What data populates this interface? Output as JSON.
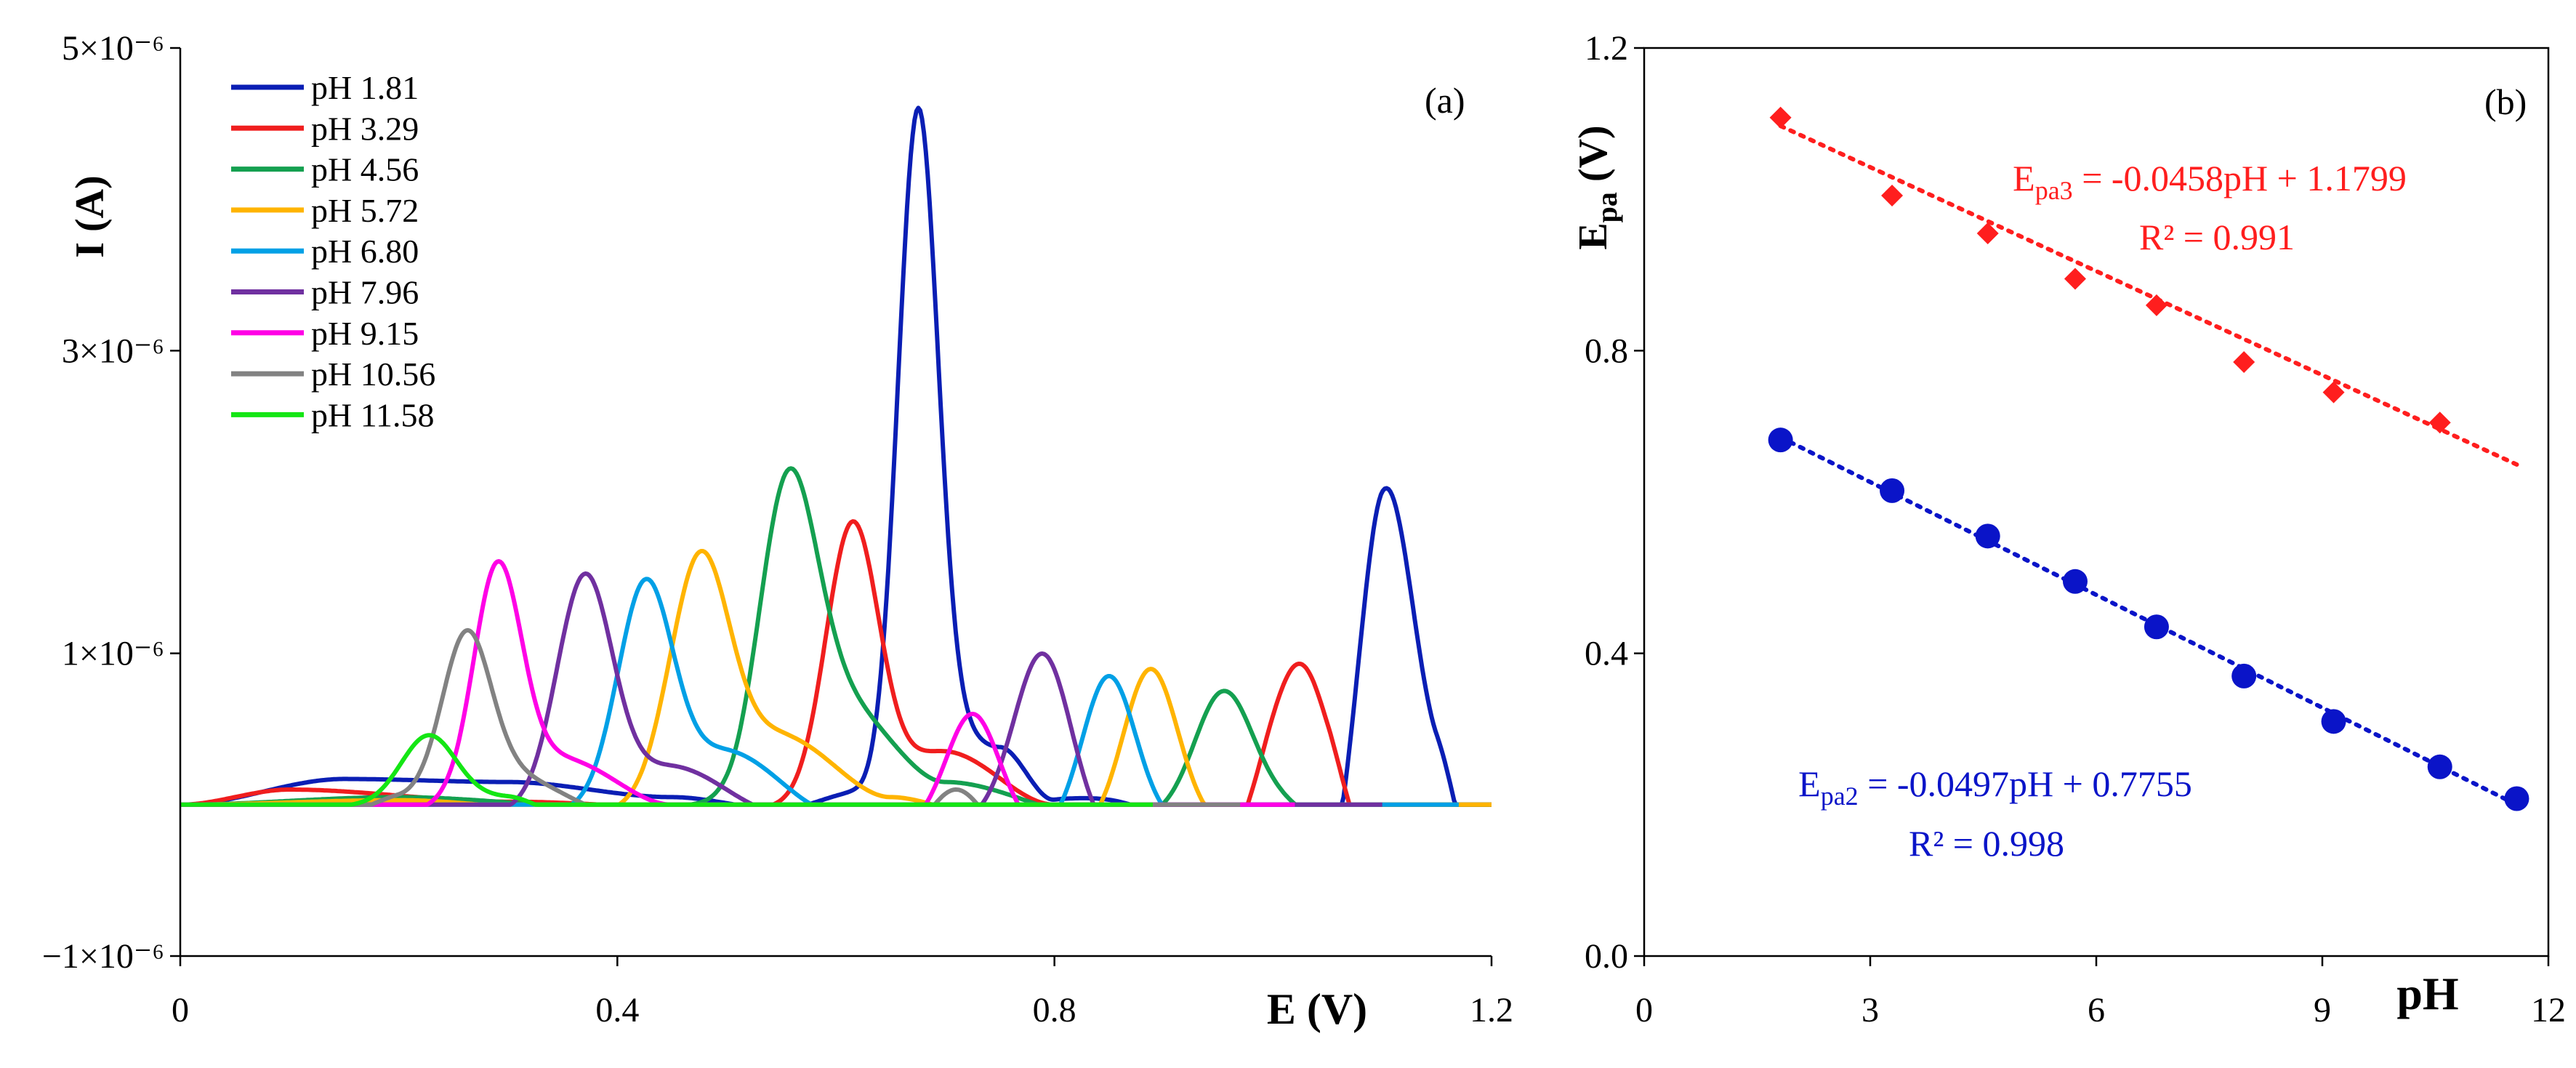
{
  "chart_data": [
    {
      "panel_label": "(a)",
      "type": "line",
      "xlabel": "E (V)",
      "ylabel": "I (A)",
      "xlim": [
        0,
        1.2
      ],
      "ylim": [
        -1e-06,
        5e-06
      ],
      "x_ticks": [
        0,
        0.4,
        0.8,
        1.2
      ],
      "x_tick_labels": [
        "0",
        "0.4",
        "0.8",
        "1.2"
      ],
      "y_ticks": [
        -1e-06,
        1e-06,
        3e-06,
        5e-06
      ],
      "y_tick_labels": [
        "−1×10⁻⁶",
        "1×10⁻⁶",
        "3×10⁻⁶",
        "5×10⁻⁶"
      ],
      "legend_position": "top-left",
      "series": [
        {
          "name": "pH 1.81",
          "color": "#0A1EB4",
          "baseline": [
            [
              0,
              0
            ],
            [
              0.15,
              0.17
            ],
            [
              0.3,
              0.15
            ],
            [
              0.45,
              0.05
            ],
            [
              0.55,
              -0.03
            ],
            [
              0.62,
              0.08
            ],
            [
              0.7,
              0.5
            ],
            [
              0.75,
              0.38
            ],
            [
              0.8,
              0.02
            ],
            [
              0.88,
              -0.1
            ],
            [
              0.95,
              -0.25
            ],
            [
              1.0,
              -0.45
            ],
            [
              1.05,
              -0.55
            ],
            [
              1.1,
              0.6
            ],
            [
              1.15,
              0.2
            ],
            [
              1.2,
              -0.8
            ]
          ],
          "peaks": [
            [
              0.675,
              4.2,
              0.018
            ],
            [
              1.105,
              1.5,
              0.024
            ],
            [
              0.86,
              0.1,
              0.03
            ]
          ]
        },
        {
          "name": "pH 3.29",
          "color": "#F01E1E",
          "baseline": [
            [
              0,
              0
            ],
            [
              0.1,
              0.1
            ],
            [
              0.3,
              0.02
            ],
            [
              0.5,
              -0.03
            ],
            [
              0.6,
              0.0
            ],
            [
              0.7,
              0.35
            ],
            [
              0.8,
              0.0
            ],
            [
              0.88,
              -0.2
            ],
            [
              0.95,
              -0.35
            ],
            [
              1.0,
              0.05
            ],
            [
              1.05,
              -0.25
            ],
            [
              1.1,
              -0.45
            ],
            [
              1.2,
              -0.8
            ]
          ],
          "peaks": [
            [
              0.615,
              1.85,
              0.024
            ],
            [
              1.03,
              1.05,
              0.026
            ]
          ]
        },
        {
          "name": "pH 4.56",
          "color": "#14A050",
          "baseline": [
            [
              0,
              0
            ],
            [
              0.2,
              0.05
            ],
            [
              0.4,
              -0.02
            ],
            [
              0.5,
              0.0
            ],
            [
              0.6,
              0.7
            ],
            [
              0.7,
              0.15
            ],
            [
              0.85,
              -0.1
            ],
            [
              0.95,
              -0.05
            ],
            [
              1.0,
              0.0
            ],
            [
              1.1,
              -0.3
            ],
            [
              1.2,
              -0.5
            ]
          ],
          "peaks": [
            [
              0.555,
              1.8,
              0.026
            ],
            [
              0.955,
              0.8,
              0.026
            ]
          ]
        },
        {
          "name": "pH 5.72",
          "color": "#FFB400",
          "baseline": [
            [
              0,
              0
            ],
            [
              0.2,
              0.03
            ],
            [
              0.38,
              -0.05
            ],
            [
              0.45,
              0.0
            ],
            [
              0.55,
              0.45
            ],
            [
              0.65,
              0.05
            ],
            [
              0.75,
              -0.1
            ],
            [
              0.82,
              -0.2
            ],
            [
              0.9,
              -0.15
            ],
            [
              1.0,
              -0.15
            ],
            [
              1.1,
              -0.35
            ],
            [
              1.2,
              -0.6
            ]
          ],
          "peaks": [
            [
              0.475,
              1.6,
              0.027
            ],
            [
              0.888,
              1.05,
              0.025
            ]
          ]
        },
        {
          "name": "pH 6.80",
          "color": "#00A0E6",
          "baseline": [
            [
              0,
              0
            ],
            [
              0.2,
              -0.02
            ],
            [
              0.33,
              -0.05
            ],
            [
              0.4,
              -0.02
            ],
            [
              0.5,
              0.35
            ],
            [
              0.6,
              -0.05
            ],
            [
              0.7,
              -0.1
            ],
            [
              0.78,
              -0.2
            ],
            [
              0.85,
              -0.1
            ],
            [
              0.95,
              -0.15
            ],
            [
              1.05,
              -0.4
            ],
            [
              1.12,
              -0.6
            ],
            [
              1.15,
              -0.8
            ],
            [
              1.17,
              -1.0
            ]
          ],
          "peaks": [
            [
              0.425,
              1.45,
              0.025
            ],
            [
              0.85,
              0.95,
              0.024
            ]
          ]
        },
        {
          "name": "pH 7.96",
          "color": "#7030A0",
          "baseline": [
            [
              0,
              0
            ],
            [
              0.15,
              -0.03
            ],
            [
              0.28,
              -0.05
            ],
            [
              0.35,
              0.0
            ],
            [
              0.45,
              0.25
            ],
            [
              0.55,
              -0.05
            ],
            [
              0.65,
              -0.2
            ],
            [
              0.75,
              -0.1
            ],
            [
              0.85,
              -0.25
            ],
            [
              0.95,
              -0.35
            ],
            [
              1.0,
              -0.45
            ],
            [
              1.07,
              -0.7
            ],
            [
              1.1,
              -1.0
            ]
          ],
          "peaks": [
            [
              0.37,
              1.5,
              0.025
            ],
            [
              0.79,
              1.15,
              0.026
            ]
          ]
        },
        {
          "name": "pH 9.15",
          "color": "#FF00E6",
          "baseline": [
            [
              0,
              0
            ],
            [
              0.1,
              -0.02
            ],
            [
              0.18,
              -0.08
            ],
            [
              0.25,
              0.0
            ],
            [
              0.35,
              0.3
            ],
            [
              0.45,
              0.0
            ],
            [
              0.55,
              -0.1
            ],
            [
              0.65,
              -0.15
            ],
            [
              0.75,
              -0.15
            ],
            [
              0.85,
              -0.3
            ],
            [
              0.9,
              -0.4
            ],
            [
              0.96,
              -0.6
            ],
            [
              1.0,
              -0.8
            ],
            [
              1.02,
              -1.0
            ]
          ],
          "peaks": [
            [
              0.29,
              1.5,
              0.022
            ],
            [
              0.725,
              0.75,
              0.024
            ]
          ]
        },
        {
          "name": "pH 10.56",
          "color": "#828282",
          "baseline": [
            [
              0,
              0
            ],
            [
              0.1,
              -0.03
            ],
            [
              0.15,
              -0.05
            ],
            [
              0.2,
              0.05
            ],
            [
              0.3,
              0.2
            ],
            [
              0.4,
              -0.05
            ],
            [
              0.55,
              -0.2
            ],
            [
              0.65,
              -0.25
            ],
            [
              0.75,
              -0.25
            ],
            [
              0.85,
              -0.4
            ],
            [
              0.9,
              -0.6
            ],
            [
              0.95,
              -0.85
            ],
            [
              0.97,
              -1.0
            ]
          ],
          "peaks": [
            [
              0.262,
              1.0,
              0.022
            ],
            [
              0.71,
              0.35,
              0.024
            ]
          ]
        },
        {
          "name": "pH 11.58",
          "color": "#14E614",
          "baseline": [
            [
              0,
              0
            ],
            [
              0.1,
              -0.02
            ],
            [
              0.2,
              0.0
            ],
            [
              0.3,
              0.05
            ],
            [
              0.35,
              -0.05
            ],
            [
              0.5,
              -0.18
            ],
            [
              0.6,
              -0.25
            ],
            [
              0.7,
              -0.25
            ],
            [
              0.78,
              -0.4
            ],
            [
              0.83,
              -0.6
            ],
            [
              0.87,
              -0.85
            ],
            [
              0.89,
              -1.0
            ]
          ],
          "peaks": [
            [
              0.227,
              0.45,
              0.025
            ]
          ]
        }
      ]
    },
    {
      "panel_label": "(b)",
      "type": "scatter",
      "xlabel": "pH",
      "ylabel": "E",
      "ylabel_sub": "pa",
      "ylabel_unit": " (V)",
      "xlim": [
        0,
        12
      ],
      "ylim": [
        0,
        1.2
      ],
      "x_ticks": [
        0,
        3,
        6,
        9,
        12
      ],
      "x_tick_labels": [
        "0",
        "3",
        "6",
        "9",
        "12"
      ],
      "y_ticks": [
        0,
        0.4,
        0.8,
        1.2
      ],
      "y_tick_labels": [
        "0.0",
        "0.4",
        "0.8",
        "1.2"
      ],
      "series": [
        {
          "name": "Epa3",
          "color": "#FF1E1E",
          "marker": "diamond",
          "x": [
            1.81,
            3.29,
            4.56,
            5.72,
            6.8,
            7.96,
            9.15,
            10.56
          ],
          "y": [
            1.108,
            1.005,
            0.955,
            0.895,
            0.86,
            0.785,
            0.745,
            0.705
          ],
          "fit": {
            "slope": -0.0458,
            "intercept": 1.1799,
            "x_range": [
              1.81,
              11.58
            ]
          },
          "eq_prefix": "E",
          "eq_sub": "pa3",
          "eq_rest": " = -0.0458pH + 1.1799",
          "r2": "R² = 0.991"
        },
        {
          "name": "Epa2",
          "color": "#0A14C8",
          "marker": "circle",
          "x": [
            1.81,
            3.29,
            4.56,
            5.72,
            6.8,
            7.96,
            9.15,
            10.56,
            11.58
          ],
          "y": [
            0.682,
            0.615,
            0.555,
            0.495,
            0.435,
            0.37,
            0.31,
            0.25,
            0.208
          ],
          "fit": {
            "slope": -0.0497,
            "intercept": 0.7755,
            "x_range": [
              1.81,
              11.58
            ]
          },
          "eq_prefix": "E",
          "eq_sub": "pa2",
          "eq_rest": " = -0.0497pH + 0.7755",
          "r2": "R² = 0.998"
        }
      ]
    }
  ]
}
